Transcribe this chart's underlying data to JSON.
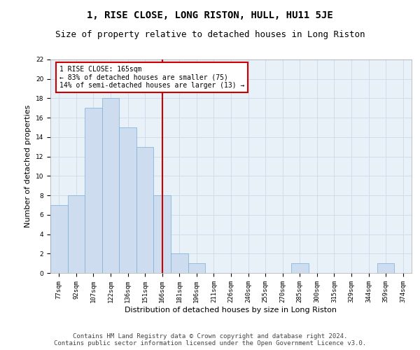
{
  "title": "1, RISE CLOSE, LONG RISTON, HULL, HU11 5JE",
  "subtitle": "Size of property relative to detached houses in Long Riston",
  "xlabel": "Distribution of detached houses by size in Long Riston",
  "ylabel": "Number of detached properties",
  "categories": [
    "77sqm",
    "92sqm",
    "107sqm",
    "122sqm",
    "136sqm",
    "151sqm",
    "166sqm",
    "181sqm",
    "196sqm",
    "211sqm",
    "226sqm",
    "240sqm",
    "255sqm",
    "270sqm",
    "285sqm",
    "300sqm",
    "315sqm",
    "329sqm",
    "344sqm",
    "359sqm",
    "374sqm"
  ],
  "values": [
    7,
    8,
    17,
    18,
    15,
    13,
    8,
    2,
    1,
    0,
    0,
    0,
    0,
    0,
    1,
    0,
    0,
    0,
    0,
    1,
    0
  ],
  "bar_color": "#cddcee",
  "bar_edge_color": "#7aaed6",
  "grid_color": "#c5d5e8",
  "background_color": "#e8f0f8",
  "vline_x_index": 6,
  "vline_color": "#cc0000",
  "annotation_text": "1 RISE CLOSE: 165sqm\n← 83% of detached houses are smaller (75)\n14% of semi-detached houses are larger (13) →",
  "annotation_box_color": "#ffffff",
  "annotation_box_edge": "#cc0000",
  "ylim": [
    0,
    22
  ],
  "yticks": [
    0,
    2,
    4,
    6,
    8,
    10,
    12,
    14,
    16,
    18,
    20,
    22
  ],
  "footer_line1": "Contains HM Land Registry data © Crown copyright and database right 2024.",
  "footer_line2": "Contains public sector information licensed under the Open Government Licence v3.0.",
  "title_fontsize": 10,
  "subtitle_fontsize": 9,
  "xlabel_fontsize": 8,
  "ylabel_fontsize": 8,
  "tick_fontsize": 6.5,
  "annotation_fontsize": 7,
  "footer_fontsize": 6.5
}
